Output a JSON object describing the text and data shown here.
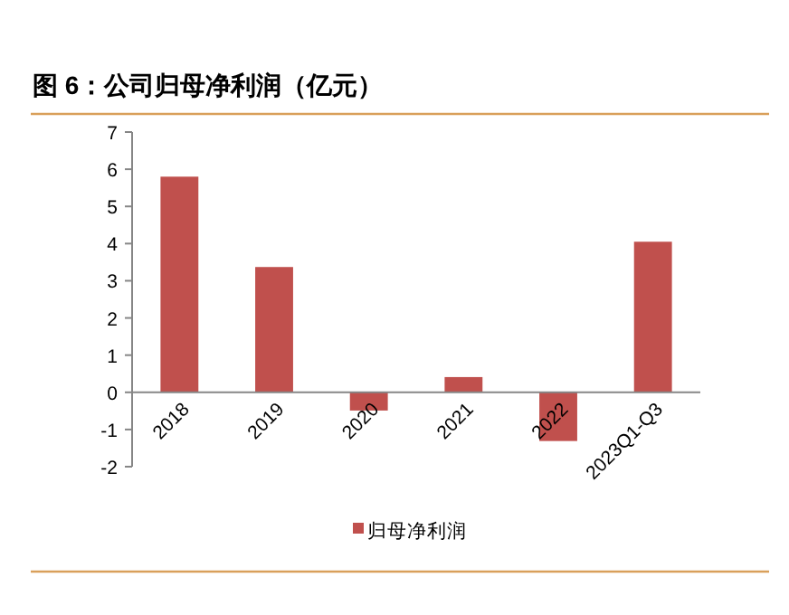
{
  "chart_data": {
    "type": "bar",
    "title": "图 6：公司归母净利润（亿元）",
    "categories": [
      "2018",
      "2019",
      "2020",
      "2021",
      "2022",
      "2023Q1-Q3"
    ],
    "series": [
      {
        "name": "归母净利润",
        "color": "#c0504d",
        "values": [
          5.8,
          3.37,
          -0.49,
          0.41,
          -1.31,
          4.05
        ]
      }
    ],
    "ylim": [
      -2,
      7
    ],
    "yticks": [
      -2,
      -1,
      0,
      1,
      2,
      3,
      4,
      5,
      6,
      7
    ],
    "grid": false,
    "legend": "bottom"
  }
}
